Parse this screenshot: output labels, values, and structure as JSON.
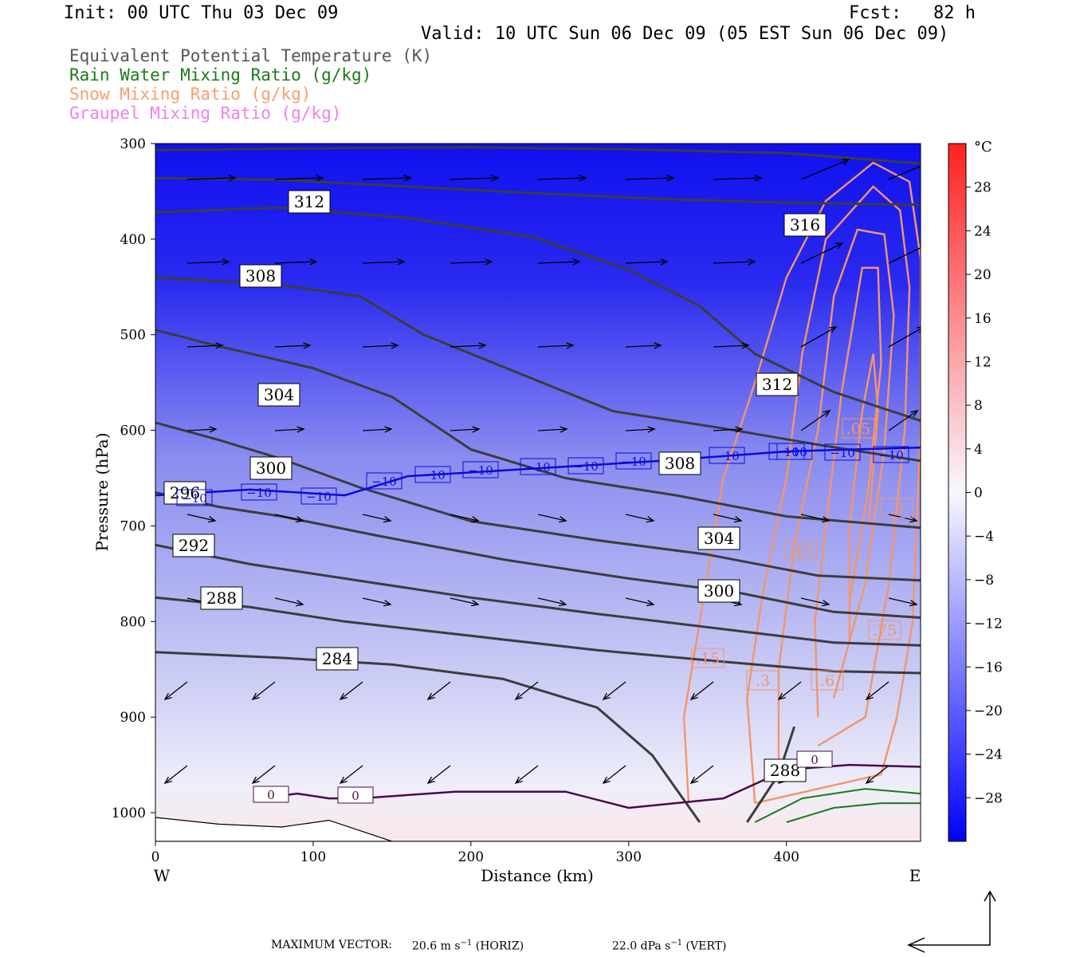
{
  "header": {
    "init": "Init: 00 UTC Thu 03 Dec 09",
    "fcst": "Fcst:   82 h",
    "valid": "Valid: 10 UTC Sun 06 Dec 09 (05 EST Sun 06 Dec 09)"
  },
  "legend": [
    {
      "text": "Equivalent Potential Temperature (K)",
      "color": "#555555"
    },
    {
      "text": "Rain Water Mixing Ratio (g/kg)",
      "color": "#1a7a1a"
    },
    {
      "text": "Snow Mixing Ratio (g/kg)",
      "color": "#f4a070"
    },
    {
      "text": "Graupel Mixing Ratio (g/kg)",
      "color": "#ee82ee"
    }
  ],
  "chart_data": {
    "type": "heatmap",
    "xlabel": "Distance (km)",
    "ylabel": "Pressure (hPa)",
    "xlim": [
      0,
      485
    ],
    "ylim": [
      1030,
      300
    ],
    "x_ticks": [
      "0",
      "100",
      "200",
      "300",
      "400"
    ],
    "y_ticks": [
      "300",
      "400",
      "500",
      "600",
      "700",
      "800",
      "900",
      "1000"
    ],
    "x_end_labels": {
      "left": "W",
      "right": "E"
    },
    "colorbar": {
      "unit": "°C",
      "ticks": [
        "28",
        "24",
        "20",
        "16",
        "12",
        "8",
        "4",
        "0",
        "−4",
        "−8",
        "−12",
        "−16",
        "−20",
        "−24",
        "−28"
      ],
      "range": [
        -32,
        32
      ]
    },
    "theta_e_labels": [
      "312",
      "316",
      "308",
      "312",
      "304",
      "300",
      "296",
      "308",
      "304",
      "292",
      "300",
      "288",
      "284",
      "288"
    ],
    "isotherm_labels": [
      "−10",
      "−10",
      "−10",
      "−10",
      "−10",
      "−10",
      "−10",
      "−10",
      "−10",
      "−10",
      "−10",
      "−10",
      "−10",
      "−10",
      "0",
      "0",
      "0"
    ],
    "snow_labels": [
      ".15",
      ".3",
      ".45",
      ".6",
      ".75",
      ".9",
      ".05"
    ],
    "theta_e_series": [
      {
        "value": 320,
        "points": [
          [
            0,
            307
          ],
          [
            100,
            305
          ],
          [
            200,
            304
          ],
          [
            300,
            306
          ],
          [
            400,
            310
          ],
          [
            485,
            321
          ]
        ]
      },
      {
        "value": 316,
        "points": [
          [
            0,
            336
          ],
          [
            80,
            338
          ],
          [
            160,
            345
          ],
          [
            240,
            352
          ],
          [
            320,
            358
          ],
          [
            400,
            362
          ],
          [
            485,
            364
          ]
        ]
      },
      {
        "value": 312,
        "points": [
          [
            0,
            372
          ],
          [
            80,
            367
          ],
          [
            160,
            378
          ],
          [
            240,
            398
          ],
          [
            300,
            432
          ],
          [
            345,
            470
          ],
          [
            380,
            520
          ],
          [
            430,
            560
          ],
          [
            485,
            590
          ]
        ]
      },
      {
        "value": 308,
        "points": [
          [
            0,
            440
          ],
          [
            80,
            448
          ],
          [
            130,
            460
          ],
          [
            170,
            500
          ],
          [
            230,
            540
          ],
          [
            290,
            580
          ],
          [
            360,
            598
          ],
          [
            420,
            615
          ],
          [
            485,
            632
          ]
        ]
      },
      {
        "value": 304,
        "points": [
          [
            0,
            495
          ],
          [
            40,
            512
          ],
          [
            100,
            535
          ],
          [
            150,
            565
          ],
          [
            200,
            620
          ],
          [
            260,
            650
          ],
          [
            330,
            668
          ],
          [
            400,
            690
          ],
          [
            485,
            702
          ]
        ]
      },
      {
        "value": 300,
        "points": [
          [
            0,
            592
          ],
          [
            40,
            610
          ],
          [
            80,
            630
          ],
          [
            130,
            660
          ],
          [
            200,
            695
          ],
          [
            280,
            715
          ],
          [
            350,
            730
          ],
          [
            420,
            752
          ],
          [
            485,
            757
          ]
        ]
      },
      {
        "value": 296,
        "points": [
          [
            0,
            665
          ],
          [
            40,
            680
          ],
          [
            80,
            690
          ],
          [
            140,
            710
          ],
          [
            220,
            735
          ],
          [
            300,
            755
          ],
          [
            370,
            770
          ],
          [
            430,
            790
          ],
          [
            485,
            796
          ]
        ]
      },
      {
        "value": 292,
        "points": [
          [
            0,
            720
          ],
          [
            60,
            740
          ],
          [
            120,
            755
          ],
          [
            200,
            775
          ],
          [
            280,
            792
          ],
          [
            360,
            808
          ],
          [
            430,
            822
          ],
          [
            485,
            825
          ]
        ]
      },
      {
        "value": 288,
        "points": [
          [
            0,
            775
          ],
          [
            60,
            785
          ],
          [
            120,
            800
          ],
          [
            200,
            815
          ],
          [
            280,
            830
          ],
          [
            360,
            842
          ],
          [
            430,
            852
          ],
          [
            485,
            854
          ]
        ]
      },
      {
        "value": 284,
        "points": [
          [
            0,
            832
          ],
          [
            80,
            838
          ],
          [
            150,
            845
          ],
          [
            220,
            860
          ],
          [
            280,
            890
          ],
          [
            315,
            940
          ],
          [
            345,
            1010
          ]
        ]
      },
      {
        "value": 288,
        "points": [
          [
            375,
            1010
          ],
          [
            395,
            960
          ],
          [
            405,
            910
          ]
        ]
      }
    ],
    "isotherm_m10": [
      [
        0,
        668
      ],
      [
        60,
        662
      ],
      [
        120,
        668
      ],
      [
        160,
        648
      ],
      [
        240,
        640
      ],
      [
        320,
        632
      ],
      [
        400,
        622
      ],
      [
        485,
        618
      ]
    ],
    "isotherm_0": [
      [
        65,
        985
      ],
      [
        90,
        980
      ],
      [
        110,
        985
      ],
      [
        130,
        985
      ],
      [
        190,
        978
      ],
      [
        260,
        978
      ],
      [
        300,
        995
      ],
      [
        360,
        985
      ],
      [
        400,
        955
      ],
      [
        440,
        950
      ],
      [
        485,
        952
      ]
    ],
    "ground": [
      [
        0,
        1005
      ],
      [
        40,
        1012
      ],
      [
        80,
        1015
      ],
      [
        110,
        1008
      ],
      [
        150,
        1030
      ],
      [
        485,
        1030
      ]
    ],
    "snow_contours": [
      {
        "points": [
          [
            338,
            990
          ],
          [
            335,
            900
          ],
          [
            345,
            800
          ],
          [
            360,
            650
          ],
          [
            380,
            550
          ],
          [
            400,
            440
          ],
          [
            425,
            360
          ],
          [
            455,
            320
          ],
          [
            478,
            340
          ],
          [
            485,
            420
          ],
          [
            485,
            600
          ],
          [
            480,
            800
          ],
          [
            470,
            900
          ],
          [
            460,
            960
          ],
          [
            420,
            975
          ],
          [
            380,
            990
          ]
        ]
      },
      {
        "points": [
          [
            380,
            990
          ],
          [
            375,
            880
          ],
          [
            385,
            770
          ],
          [
            400,
            650
          ],
          [
            410,
            520
          ],
          [
            425,
            400
          ],
          [
            455,
            345
          ],
          [
            472,
            370
          ],
          [
            478,
            450
          ],
          [
            475,
            600
          ],
          [
            465,
            760
          ],
          [
            450,
            900
          ],
          [
            420,
            930
          ]
        ]
      },
      {
        "points": [
          [
            395,
            960
          ],
          [
            395,
            850
          ],
          [
            405,
            720
          ],
          [
            420,
            600
          ],
          [
            430,
            460
          ],
          [
            445,
            390
          ],
          [
            462,
            395
          ],
          [
            468,
            480
          ],
          [
            462,
            620
          ],
          [
            450,
            760
          ],
          [
            430,
            880
          ]
        ]
      },
      {
        "points": [
          [
            420,
            900
          ],
          [
            418,
            800
          ],
          [
            425,
            700
          ],
          [
            435,
            560
          ],
          [
            448,
            430
          ],
          [
            458,
            430
          ],
          [
            460,
            530
          ],
          [
            452,
            660
          ],
          [
            440,
            780
          ]
        ]
      },
      {
        "points": [
          [
            440,
            820
          ],
          [
            440,
            700
          ],
          [
            448,
            580
          ],
          [
            455,
            520
          ],
          [
            458,
            580
          ],
          [
            452,
            700
          ]
        ]
      }
    ],
    "rain_contours": [
      {
        "points": [
          [
            380,
            1010
          ],
          [
            410,
            985
          ],
          [
            450,
            975
          ],
          [
            485,
            980
          ]
        ]
      },
      {
        "points": [
          [
            400,
            1010
          ],
          [
            430,
            995
          ],
          [
            460,
            990
          ],
          [
            485,
            990
          ]
        ]
      }
    ]
  },
  "footer": {
    "max_vector_label": "MAXIMUM VECTOR:",
    "horiz_value": "20.6 m s",
    "horiz_exp": "−1",
    "horiz_unit": " (HORIZ)",
    "vert_value": "22.0 dPa s",
    "vert_exp": "−1",
    "vert_unit": " (VERT)"
  }
}
